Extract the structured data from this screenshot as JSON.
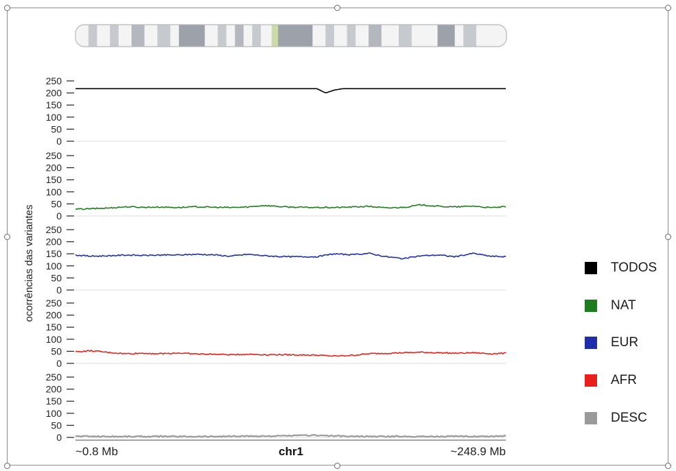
{
  "chart_data": {
    "type": "line",
    "title": "",
    "ylabel": "ocorrências das variantes",
    "x_start_label": "~0.8 Mb",
    "x_center_label": "chr1",
    "x_end_label": "~248.9 Mb",
    "x_range_mb": [
      0.8,
      248.9
    ],
    "ylim": [
      0,
      250
    ],
    "yticks": [
      0,
      50,
      100,
      150,
      200,
      250
    ],
    "legend_position": "right",
    "series": [
      {
        "name": "TODOS",
        "color": "#000000",
        "baseline": 218,
        "x": [
          0.8,
          20,
          40,
          60,
          80,
          100,
          120,
          140,
          145,
          150,
          155,
          160,
          180,
          200,
          220,
          240,
          248.9
        ],
        "values": [
          218,
          218,
          218,
          218,
          218,
          218,
          218,
          218,
          200,
          212,
          218,
          218,
          218,
          218,
          218,
          218,
          218
        ]
      },
      {
        "name": "NAT",
        "color": "#1e7b1e",
        "baseline": 36,
        "x": [
          0.8,
          10,
          20,
          30,
          40,
          50,
          60,
          70,
          80,
          90,
          100,
          110,
          120,
          130,
          140,
          150,
          160,
          170,
          180,
          190,
          200,
          210,
          220,
          230,
          240,
          248.9
        ],
        "values": [
          28,
          30,
          33,
          38,
          36,
          37,
          35,
          38,
          36,
          35,
          37,
          44,
          38,
          36,
          35,
          35,
          37,
          40,
          33,
          36,
          46,
          40,
          37,
          41,
          34,
          38
        ]
      },
      {
        "name": "EUR",
        "color": "#1f2ea8",
        "baseline": 143,
        "x": [
          0.8,
          10,
          20,
          30,
          40,
          50,
          60,
          70,
          80,
          90,
          100,
          110,
          120,
          130,
          140,
          150,
          160,
          170,
          180,
          190,
          200,
          210,
          220,
          230,
          240,
          248.9
        ],
        "values": [
          145,
          140,
          142,
          145,
          143,
          145,
          145,
          148,
          146,
          140,
          148,
          142,
          138,
          138,
          138,
          150,
          146,
          152,
          138,
          130,
          142,
          145,
          138,
          152,
          140,
          138
        ]
      },
      {
        "name": "AFR",
        "color": "#e8201c",
        "baseline": 40,
        "x": [
          0.8,
          10,
          20,
          30,
          40,
          50,
          60,
          70,
          80,
          90,
          100,
          110,
          120,
          130,
          140,
          150,
          160,
          170,
          180,
          190,
          200,
          210,
          220,
          230,
          240,
          248.9
        ],
        "values": [
          48,
          52,
          45,
          40,
          42,
          40,
          43,
          39,
          38,
          36,
          38,
          36,
          36,
          35,
          34,
          30,
          33,
          40,
          42,
          44,
          46,
          44,
          42,
          44,
          40,
          42
        ]
      },
      {
        "name": "DESC",
        "color": "#9a9a9a",
        "baseline": 4,
        "x": [
          0.8,
          20,
          40,
          60,
          80,
          100,
          120,
          130,
          140,
          150,
          160,
          180,
          200,
          220,
          240,
          248.9
        ],
        "values": [
          5,
          4,
          4,
          4,
          4,
          5,
          6,
          8,
          9,
          6,
          4,
          4,
          4,
          4,
          5,
          6
        ]
      }
    ]
  },
  "ideogram": {
    "bands": [
      {
        "start": 0,
        "end": 0.03,
        "color": "#f4f4f5"
      },
      {
        "start": 0.03,
        "end": 0.05,
        "color": "#c6c9ce"
      },
      {
        "start": 0.05,
        "end": 0.08,
        "color": "#f4f4f5"
      },
      {
        "start": 0.08,
        "end": 0.1,
        "color": "#c6c9ce"
      },
      {
        "start": 0.1,
        "end": 0.13,
        "color": "#f4f4f5"
      },
      {
        "start": 0.13,
        "end": 0.16,
        "color": "#b4b7bd"
      },
      {
        "start": 0.16,
        "end": 0.19,
        "color": "#f4f4f5"
      },
      {
        "start": 0.19,
        "end": 0.22,
        "color": "#c6c9ce"
      },
      {
        "start": 0.22,
        "end": 0.24,
        "color": "#f4f4f5"
      },
      {
        "start": 0.24,
        "end": 0.3,
        "color": "#9da1a9"
      },
      {
        "start": 0.3,
        "end": 0.33,
        "color": "#f4f4f5"
      },
      {
        "start": 0.33,
        "end": 0.35,
        "color": "#c6c9ce"
      },
      {
        "start": 0.35,
        "end": 0.37,
        "color": "#f4f4f5"
      },
      {
        "start": 0.37,
        "end": 0.39,
        "color": "#b4b7bd"
      },
      {
        "start": 0.39,
        "end": 0.41,
        "color": "#f4f4f5"
      },
      {
        "start": 0.41,
        "end": 0.43,
        "color": "#c6c9ce"
      },
      {
        "start": 0.43,
        "end": 0.455,
        "color": "#f4f4f5"
      },
      {
        "start": 0.455,
        "end": 0.47,
        "color": "#ccd9a8"
      },
      {
        "start": 0.47,
        "end": 0.55,
        "color": "#9da1a9"
      },
      {
        "start": 0.55,
        "end": 0.58,
        "color": "#f4f4f5"
      },
      {
        "start": 0.58,
        "end": 0.6,
        "color": "#c6c9ce"
      },
      {
        "start": 0.6,
        "end": 0.63,
        "color": "#f4f4f5"
      },
      {
        "start": 0.63,
        "end": 0.65,
        "color": "#c6c9ce"
      },
      {
        "start": 0.65,
        "end": 0.68,
        "color": "#f4f4f5"
      },
      {
        "start": 0.68,
        "end": 0.71,
        "color": "#b4b7bd"
      },
      {
        "start": 0.71,
        "end": 0.75,
        "color": "#f4f4f5"
      },
      {
        "start": 0.75,
        "end": 0.78,
        "color": "#c6c9ce"
      },
      {
        "start": 0.78,
        "end": 0.84,
        "color": "#f4f4f5"
      },
      {
        "start": 0.84,
        "end": 0.88,
        "color": "#9da1a9"
      },
      {
        "start": 0.88,
        "end": 0.9,
        "color": "#f4f4f5"
      },
      {
        "start": 0.9,
        "end": 0.93,
        "color": "#c6c9ce"
      },
      {
        "start": 0.93,
        "end": 1.0,
        "color": "#f4f4f5"
      }
    ]
  }
}
